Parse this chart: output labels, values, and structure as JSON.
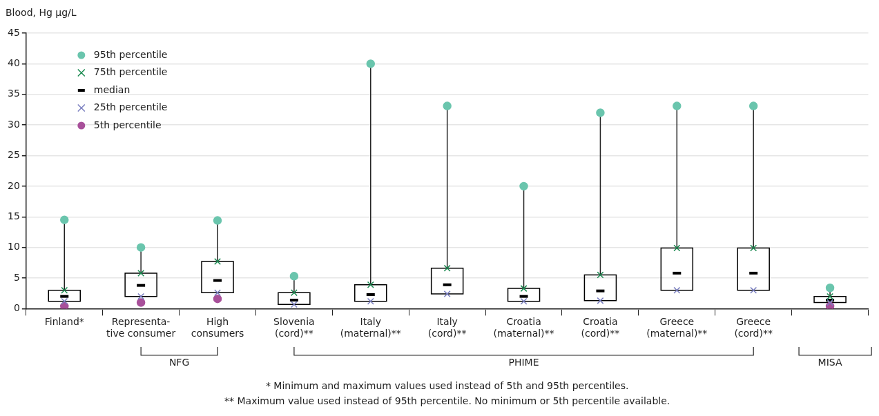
{
  "chart_data": {
    "type": "box",
    "ylabel": "Blood, Hg µg/L",
    "categories": [
      "Finland*",
      "Representa-\ntive consumer",
      "High\nconsumers",
      "Slovenia\n(cord)**",
      "Italy\n(maternal)**",
      "Italy\n(cord)**",
      "Croatia\n(maternal)**",
      "Croatia\n(cord)**",
      "Greece\n(maternal)**",
      "Greece\n(cord)**",
      null
    ],
    "ylim": [
      0,
      45
    ],
    "yticks": [
      0,
      5,
      10,
      15,
      20,
      25,
      30,
      35,
      40,
      45
    ],
    "grid": "y",
    "legend": "top left",
    "series": [
      {
        "name": "95th percentile",
        "type": "scatter",
        "marker": "circle",
        "color": "#6ac5ad",
        "values": [
          14.5,
          10.0,
          14.4,
          5.3,
          40,
          33.1,
          20,
          32,
          33.1,
          33.1,
          3.4
        ]
      },
      {
        "name": "75th percentile",
        "type": "scatter",
        "marker": "cross",
        "color": "#1a8a50",
        "values": [
          3.0,
          5.8,
          7.7,
          2.6,
          3.9,
          6.6,
          3.3,
          5.5,
          9.9,
          9.9,
          2.0
        ]
      },
      {
        "name": "median",
        "type": "box",
        "color": "#000000",
        "boxes": [
          {
            "q1": 1.2,
            "median": 2.0,
            "q3": 3.0,
            "high": 14.5
          },
          {
            "q1": 2.0,
            "median": 3.8,
            "q3": 5.8,
            "high": 10.0
          },
          {
            "q1": 2.6,
            "median": 4.6,
            "q3": 7.7,
            "high": 14.4
          },
          {
            "q1": 0.7,
            "median": 1.4,
            "q3": 2.6,
            "high": 5.3
          },
          {
            "q1": 1.2,
            "median": 2.3,
            "q3": 3.9,
            "high": 40
          },
          {
            "q1": 2.4,
            "median": 3.9,
            "q3": 6.6,
            "high": 33.1
          },
          {
            "q1": 1.2,
            "median": 2.0,
            "q3": 3.3,
            "high": 20
          },
          {
            "q1": 1.3,
            "median": 2.9,
            "q3": 5.5,
            "high": 32
          },
          {
            "q1": 3.0,
            "median": 5.8,
            "q3": 9.9,
            "high": 33.1
          },
          {
            "q1": 3.0,
            "median": 5.8,
            "q3": 9.9,
            "high": 33.1
          },
          {
            "q1": 1.0,
            "median": 1.4,
            "q3": 2.0,
            "high": 3.4
          }
        ]
      },
      {
        "name": "25th percentile",
        "type": "scatter",
        "marker": "cross",
        "color": "#7a7fc0",
        "values": [
          1.2,
          2.0,
          2.6,
          0.7,
          1.2,
          2.4,
          1.2,
          1.3,
          3.0,
          3.0,
          1.0
        ]
      },
      {
        "name": "5th percentile",
        "type": "scatter",
        "marker": "circle",
        "color": "#a8509a",
        "values": [
          0.4,
          1.0,
          1.6,
          null,
          null,
          null,
          null,
          null,
          null,
          null,
          0.4
        ]
      }
    ],
    "annotations": [
      "NFG",
      "PHIME",
      "MISA",
      "* Minimum and maximum values used instead of 5th and 95th percentiles.",
      "** Maximum value used instead of 95th percentile. No minimum or 5th percentile available."
    ]
  }
}
